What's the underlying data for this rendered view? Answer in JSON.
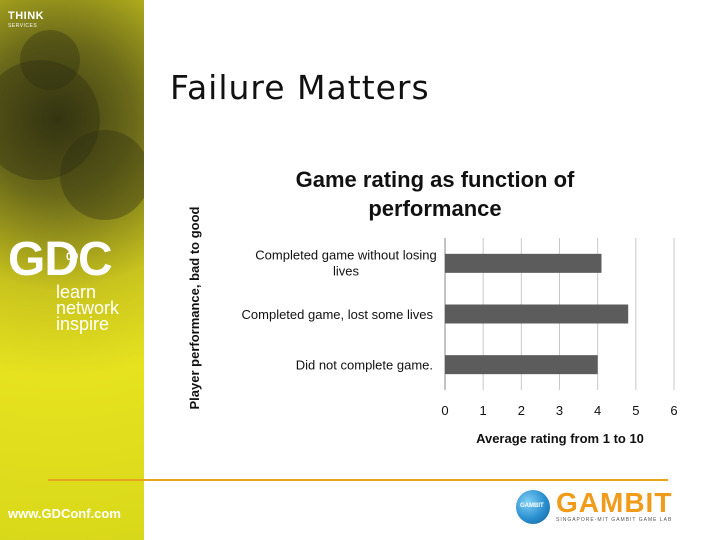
{
  "sidebar": {
    "think": "THINK",
    "think_sub": "SERVICES",
    "gdc_logo": "GDC",
    "gdc_year": "09",
    "tagline": [
      "learn",
      "network",
      "inspire"
    ],
    "url": "www.GDConf.com"
  },
  "slide": {
    "title": "Failure Matters"
  },
  "footer": {
    "logo_text": "GAMBIT",
    "logo_sub": "SINGAPORE-MIT GAMBIT GAME LAB",
    "badge_text": "GAMBIT",
    "accent_color": "#e8a31c"
  },
  "chart_data": {
    "type": "bar",
    "orientation": "horizontal",
    "title": "Game rating as function of performance",
    "xlabel": "Average rating from 1 to 10",
    "ylabel": "Player performance, bad to good",
    "categories": [
      "Completed game without losing lives",
      "Completed game, lost some lives",
      "Did not complete game."
    ],
    "values": [
      4.1,
      4.8,
      4.0
    ],
    "xlim": [
      0,
      6
    ],
    "xticks": [
      "0",
      "1",
      "2",
      "3",
      "4",
      "5",
      "6"
    ],
    "grid": true,
    "bar_color": "#5c5c5c"
  }
}
